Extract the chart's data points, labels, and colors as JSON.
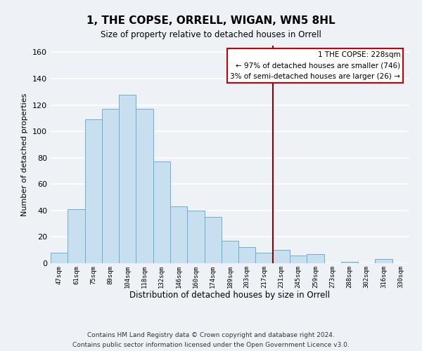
{
  "title": "1, THE COPSE, ORRELL, WIGAN, WN5 8HL",
  "subtitle": "Size of property relative to detached houses in Orrell",
  "xlabel": "Distribution of detached houses by size in Orrell",
  "ylabel": "Number of detached properties",
  "bar_labels": [
    "47sqm",
    "61sqm",
    "75sqm",
    "89sqm",
    "104sqm",
    "118sqm",
    "132sqm",
    "146sqm",
    "160sqm",
    "174sqm",
    "189sqm",
    "203sqm",
    "217sqm",
    "231sqm",
    "245sqm",
    "259sqm",
    "273sqm",
    "288sqm",
    "302sqm",
    "316sqm",
    "330sqm"
  ],
  "bar_values": [
    8,
    41,
    109,
    117,
    128,
    117,
    77,
    43,
    40,
    35,
    17,
    12,
    8,
    10,
    6,
    7,
    0,
    1,
    0,
    3,
    0
  ],
  "bar_color": "#c8dff0",
  "bar_edge_color": "#6baed6",
  "vline_x": 13.0,
  "vline_color": "#8b0000",
  "annotation_title": "1 THE COPSE: 228sqm",
  "annotation_line1": "← 97% of detached houses are smaller (746)",
  "annotation_line2": "3% of semi-detached houses are larger (26) →",
  "annotation_box_color": "white",
  "annotation_box_edge": "#cc0000",
  "ylim": [
    0,
    165
  ],
  "footer_line1": "Contains HM Land Registry data © Crown copyright and database right 2024.",
  "footer_line2": "Contains public sector information licensed under the Open Government Licence v3.0.",
  "bg_color": "#eef2f7"
}
